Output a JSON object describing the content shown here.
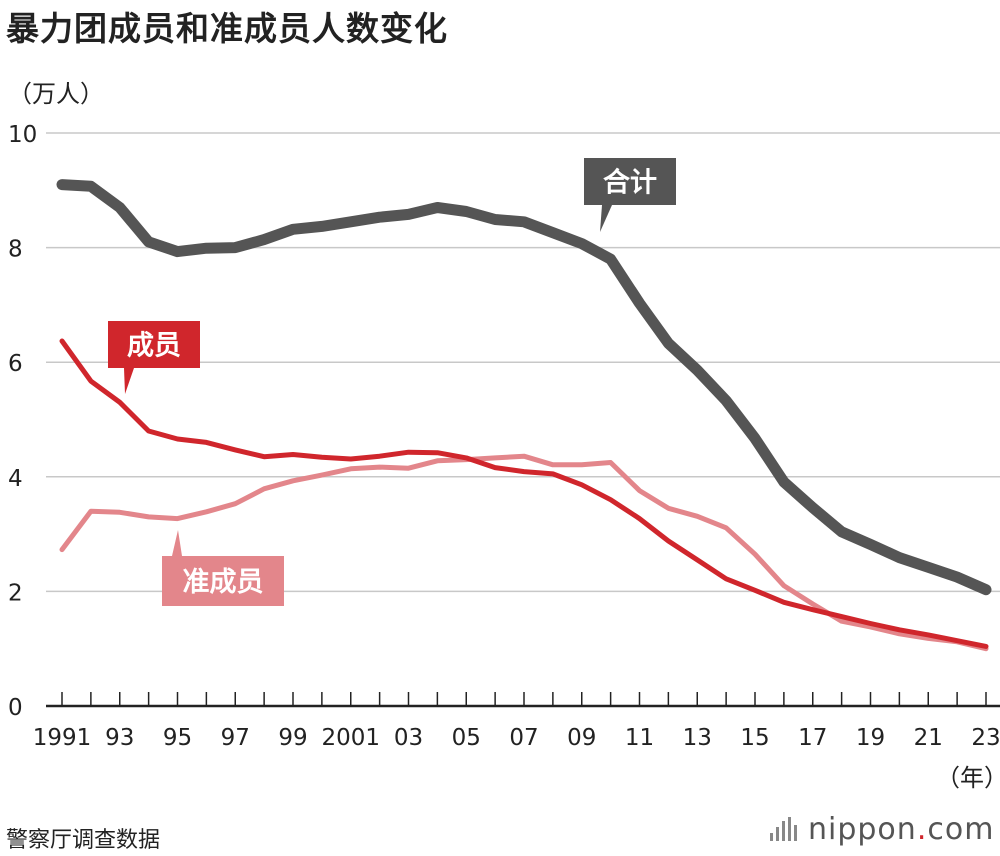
{
  "chart_data": {
    "type": "line",
    "title": "暴力团成员和准成员人数变化",
    "ylabel": "（万人）",
    "xlabel": "（年）",
    "ylim": [
      0,
      10
    ],
    "yticks": [
      0,
      2,
      4,
      6,
      8,
      10
    ],
    "x_tick_labels": [
      "1991",
      "93",
      "95",
      "97",
      "99",
      "2001",
      "03",
      "05",
      "07",
      "09",
      "11",
      "13",
      "15",
      "17",
      "19",
      "21",
      "23"
    ],
    "x": [
      1991,
      1992,
      1993,
      1994,
      1995,
      1996,
      1997,
      1998,
      1999,
      2000,
      2001,
      2002,
      2003,
      2004,
      2005,
      2006,
      2007,
      2008,
      2009,
      2010,
      2011,
      2012,
      2013,
      2014,
      2015,
      2016,
      2017,
      2018,
      2019,
      2020,
      2021,
      2022,
      2023
    ],
    "series": [
      {
        "name": "合计",
        "color": "#555555",
        "values": [
          9.1,
          9.07,
          8.7,
          8.1,
          7.93,
          7.99,
          8.0,
          8.14,
          8.32,
          8.37,
          8.45,
          8.53,
          8.58,
          8.7,
          8.63,
          8.49,
          8.45,
          8.26,
          8.07,
          7.8,
          7.03,
          6.33,
          5.86,
          5.33,
          4.67,
          3.91,
          3.46,
          3.04,
          2.82,
          2.59,
          2.42,
          2.25,
          2.03
        ]
      },
      {
        "name": "成员",
        "color": "#d0262c",
        "values": [
          6.37,
          5.67,
          5.3,
          4.8,
          4.66,
          4.6,
          4.47,
          4.35,
          4.39,
          4.34,
          4.31,
          4.36,
          4.43,
          4.42,
          4.33,
          4.16,
          4.09,
          4.05,
          3.86,
          3.6,
          3.27,
          2.88,
          2.55,
          2.22,
          2.02,
          1.81,
          1.68,
          1.56,
          1.44,
          1.33,
          1.24,
          1.14,
          1.04
        ]
      },
      {
        "name": "准成员",
        "color": "#e3868b",
        "values": [
          2.73,
          3.4,
          3.38,
          3.3,
          3.27,
          3.39,
          3.53,
          3.79,
          3.93,
          4.03,
          4.14,
          4.17,
          4.15,
          4.28,
          4.3,
          4.33,
          4.36,
          4.21,
          4.21,
          4.25,
          3.76,
          3.45,
          3.31,
          3.11,
          2.65,
          2.1,
          1.78,
          1.48,
          1.38,
          1.26,
          1.18,
          1.12,
          1.0
        ]
      }
    ],
    "callouts": [
      {
        "series": "合计",
        "label": "合计"
      },
      {
        "series": "成员",
        "label": "成员"
      },
      {
        "series": "准成员",
        "label": "准成员"
      }
    ]
  },
  "source": "警察厅调查数据",
  "brand": {
    "name": "nippon",
    "dot": ".",
    "suffix": "com"
  }
}
